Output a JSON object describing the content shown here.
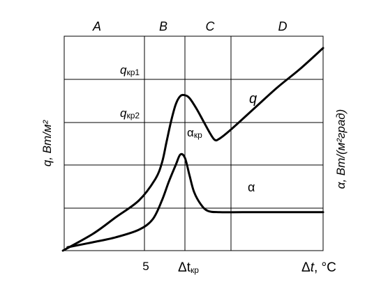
{
  "chart_data": {
    "type": "line",
    "title": "",
    "zones": [
      "A",
      "B",
      "C",
      "D"
    ],
    "xlabel": {
      "main": "Δt",
      "unit": ", °C"
    },
    "ylabel_left": "q, Вт/м²",
    "ylabel_right": "α, Вт/(м²град)",
    "x_ticks": [
      {
        "text": "5",
        "sub": ""
      },
      {
        "text": "Δt",
        "sub": "кр"
      }
    ],
    "y_markers": [
      {
        "text": "q",
        "sub": "кр1"
      },
      {
        "text": "q",
        "sub": "кр2"
      }
    ],
    "series": [
      {
        "name": "q",
        "points": [
          [
            -1.3,
            0.0
          ],
          [
            0.0,
            0.4
          ],
          [
            1.0,
            0.8
          ],
          [
            2.0,
            1.2
          ],
          [
            2.7,
            1.7
          ],
          [
            3.0,
            2.1
          ],
          [
            3.2,
            2.6
          ],
          [
            3.4,
            3.1
          ],
          [
            3.6,
            3.5
          ],
          [
            3.8,
            3.7
          ],
          [
            4.0,
            3.72
          ],
          [
            4.2,
            3.65
          ],
          [
            4.5,
            3.4
          ],
          [
            4.8,
            3.1
          ],
          [
            5.1,
            2.8
          ],
          [
            5.3,
            2.65
          ],
          [
            5.5,
            2.68
          ],
          [
            6.0,
            2.9
          ],
          [
            7.0,
            3.4
          ],
          [
            8.0,
            3.9
          ],
          [
            9.0,
            4.35
          ],
          [
            10.0,
            4.85
          ]
        ],
        "label": "q"
      },
      {
        "name": "α",
        "points": [
          [
            -1.1,
            0.08
          ],
          [
            0.0,
            0.2
          ],
          [
            1.0,
            0.32
          ],
          [
            2.0,
            0.5
          ],
          [
            2.6,
            0.75
          ],
          [
            3.0,
            1.2
          ],
          [
            3.3,
            1.65
          ],
          [
            3.6,
            2.05
          ],
          [
            3.8,
            2.3
          ],
          [
            4.0,
            2.22
          ],
          [
            4.2,
            1.8
          ],
          [
            4.4,
            1.4
          ],
          [
            4.7,
            1.1
          ],
          [
            5.0,
            0.95
          ],
          [
            5.5,
            0.92
          ],
          [
            6.5,
            0.92
          ],
          [
            8.0,
            0.92
          ],
          [
            10.0,
            0.92
          ]
        ],
        "label": "α",
        "peak_label": {
          "text": "α",
          "sub": "кр"
        }
      }
    ]
  }
}
